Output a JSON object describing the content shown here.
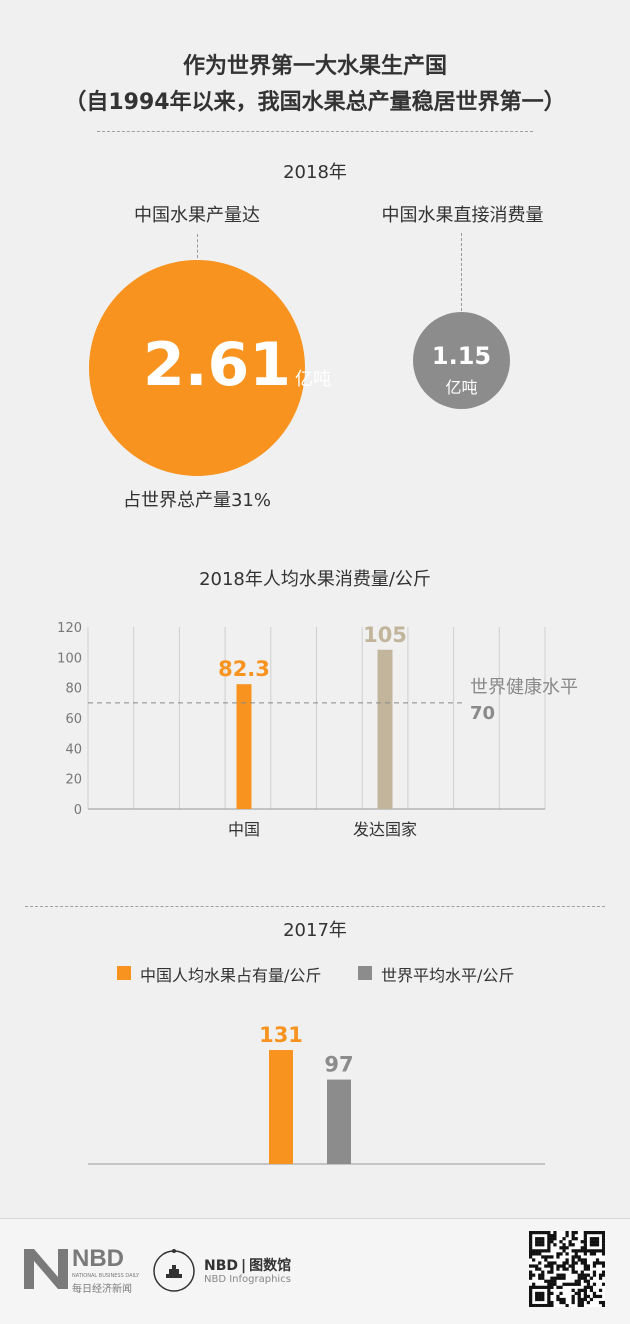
{
  "header": {
    "title_line1": "作为世界第一大水果生产国",
    "title_line2": "（自1994年以来，我国水果总产量稳居世界第一）"
  },
  "section2018": {
    "year": "2018年",
    "production_label": "中国水果产量达",
    "production_value": "2.61",
    "production_unit": "亿吨",
    "production_share": "占世界总产量31%",
    "consumption_label": "中国水果直接消费量",
    "consumption_value": "1.15",
    "consumption_unit": "亿吨"
  },
  "chart1_title": "2018年人均水果消费量/公斤",
  "section2017": {
    "year": "2017年",
    "legend_china": "中国人均水果占有量/公斤",
    "legend_world": "世界平均水平/公斤"
  },
  "footer": {
    "nbd_logo_text": "NBD",
    "nbd_small_en": "NATIONAL BUSINESS DAILY",
    "nbd_small_cn": "每日经济新闻",
    "infographics_prefix": "NBD",
    "infographics_cn": "图数馆",
    "infographics_en": "NBD Infographics"
  },
  "colors": {
    "orange": "#f7931e",
    "gray": "#8c8c8c",
    "tan": "#c2b59b",
    "text": "#333333"
  },
  "chart_data": [
    {
      "type": "bar",
      "title": "2018年人均水果消费量/公斤",
      "categories": [
        "中国",
        "发达国家"
      ],
      "values": [
        82.3,
        105
      ],
      "value_labels": [
        "82.3",
        "105"
      ],
      "bar_colors": [
        "#f7931e",
        "#c2b59b"
      ],
      "ylim": [
        0,
        120
      ],
      "yticks": [
        0,
        20,
        40,
        60,
        80,
        100,
        120
      ],
      "reference_line": {
        "value": 70,
        "label": "世界健康水平",
        "value_label": "70"
      },
      "grid": "vertical"
    },
    {
      "type": "bar",
      "title": "2017年",
      "series": [
        {
          "name": "中国人均水果占有量/公斤",
          "values": [
            131
          ],
          "color": "#f7931e",
          "value_label": "131"
        },
        {
          "name": "世界平均水平/公斤",
          "values": [
            97
          ],
          "color": "#8c8c8c",
          "value_label": "97"
        }
      ],
      "legend": "top"
    }
  ]
}
